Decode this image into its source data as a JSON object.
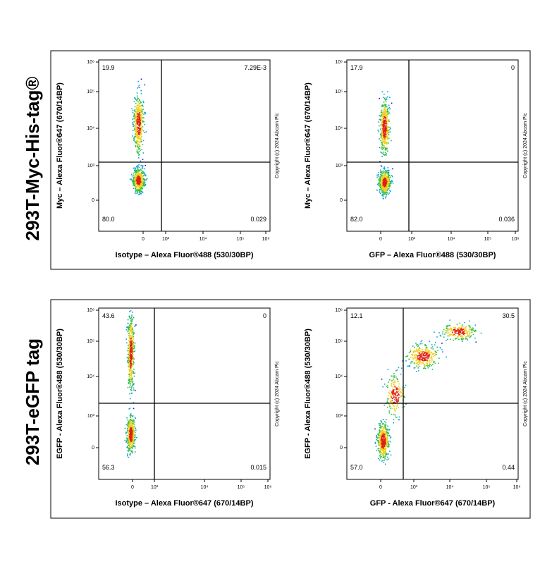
{
  "y_tick_labels": [
    "10⁶",
    "10⁵",
    "10⁴",
    "10³",
    "0"
  ],
  "x_tick_labels": [
    "0",
    "10³",
    "10⁴",
    "10⁵",
    "10⁶"
  ],
  "copyright": "Copyright (c) 2024 Abcam Plc",
  "rows": [
    {
      "label": "293T-Myc-His-tag®",
      "panels": [
        {
          "y_label": "Myc – Alexa Fluor®647 (670/14BP)",
          "x_label": "Isotype – Alexa Fluor®488 (530/30BP)",
          "quadrants": {
            "upper_left": "19.9",
            "upper_right": "7.29E-3",
            "lower_left": "80.0",
            "lower_right": "0.029"
          }
        },
        {
          "y_label": "Myc – Alexa Fluor®647 (670/14BP)",
          "x_label": "GFP – Alexa Fluor®488 (530/30BP)",
          "quadrants": {
            "upper_left": "17.9",
            "upper_right": "0",
            "lower_left": "82.0",
            "lower_right": "0.036"
          }
        }
      ]
    },
    {
      "label": "293T-eGFP tag",
      "panels": [
        {
          "y_label": "EGFP - Alexa Fluor®488 (530/30BP)",
          "x_label": "Isotype – Alexa Fluor®647 (670/14BP)",
          "quadrants": {
            "upper_left": "43.6",
            "upper_right": "0",
            "lower_left": "56.3",
            "lower_right": "0.015"
          }
        },
        {
          "y_label": "EGFP - Alexa Fluor®488 (530/30BP)",
          "x_label": "GFP - Alexa Fluor®647 (670/14BP)",
          "quadrants": {
            "upper_left": "12.1",
            "upper_right": "30.5",
            "lower_left": "57.0",
            "lower_right": "0.44"
          }
        }
      ]
    }
  ]
}
